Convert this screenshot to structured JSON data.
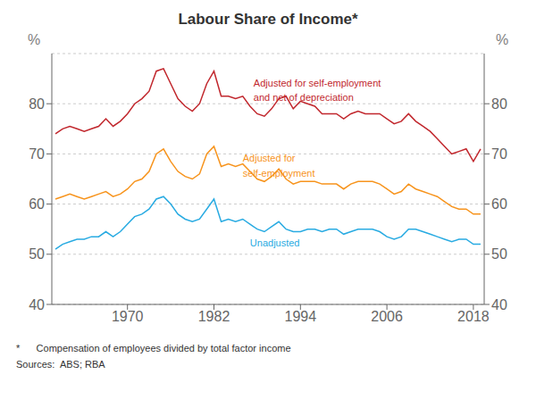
{
  "chart_data": {
    "type": "line",
    "title": "Labour Share of Income*",
    "ylabel": "%",
    "y2label": "%",
    "footnotes": [
      "*      Compensation of employees divided by total factor income",
      "Sources:  ABS; RBA"
    ],
    "x": [
      1960,
      1961,
      1962,
      1963,
      1964,
      1965,
      1966,
      1967,
      1968,
      1969,
      1970,
      1971,
      1972,
      1973,
      1974,
      1975,
      1976,
      1977,
      1978,
      1979,
      1980,
      1981,
      1982,
      1983,
      1984,
      1985,
      1986,
      1987,
      1988,
      1989,
      1990,
      1991,
      1992,
      1993,
      1994,
      1995,
      1996,
      1997,
      1998,
      1999,
      2000,
      2001,
      2002,
      2003,
      2004,
      2005,
      2006,
      2007,
      2008,
      2009,
      2010,
      2011,
      2012,
      2013,
      2014,
      2015,
      2016,
      2017,
      2018,
      2019
    ],
    "series": [
      {
        "color": "#29ABE2",
        "values": [
          51.0,
          52.0,
          52.5,
          53.0,
          53.0,
          53.5,
          53.5,
          54.5,
          53.5,
          54.5,
          56.0,
          57.5,
          58.0,
          59.0,
          61.0,
          61.5,
          60.0,
          58.0,
          57.0,
          56.5,
          57.0,
          59.0,
          61.0,
          56.5,
          57.0,
          56.5,
          57.0,
          56.0,
          55.0,
          54.5,
          55.5,
          56.5,
          55.0,
          54.5,
          54.5,
          55.0,
          55.0,
          54.5,
          55.0,
          55.0,
          54.0,
          54.5,
          55.0,
          55.0,
          55.0,
          54.5,
          53.5,
          53.0,
          53.5,
          55.0,
          55.0,
          54.5,
          54.0,
          53.5,
          53.0,
          52.5,
          53.0,
          53.0,
          52.0,
          52.0
        ]
      },
      {
        "color": "#F7941D",
        "values": [
          61.0,
          61.5,
          62.0,
          61.5,
          61.0,
          61.5,
          62.0,
          62.5,
          61.5,
          62.0,
          63.0,
          64.5,
          65.0,
          66.5,
          70.0,
          71.0,
          68.5,
          66.5,
          65.5,
          65.0,
          66.0,
          70.0,
          71.5,
          67.5,
          68.0,
          67.5,
          68.0,
          66.5,
          65.0,
          64.5,
          65.5,
          67.0,
          65.0,
          64.0,
          64.5,
          64.5,
          64.5,
          64.0,
          64.0,
          64.0,
          63.0,
          64.0,
          64.5,
          64.5,
          64.5,
          64.0,
          63.0,
          62.0,
          62.5,
          64.0,
          63.0,
          62.5,
          62.0,
          61.5,
          60.5,
          59.5,
          59.0,
          59.0,
          58.0,
          58.0
        ]
      },
      {
        "color": "#C1272D",
        "values": [
          74.0,
          75.0,
          75.5,
          75.0,
          74.5,
          75.0,
          75.5,
          77.0,
          75.5,
          76.5,
          78.0,
          80.0,
          81.0,
          82.5,
          86.5,
          87.0,
          84.0,
          81.0,
          79.5,
          78.5,
          80.0,
          84.0,
          86.5,
          81.5,
          81.5,
          81.0,
          81.5,
          79.5,
          78.0,
          77.5,
          79.0,
          81.0,
          81.5,
          79.0,
          80.5,
          80.0,
          79.5,
          78.0,
          78.0,
          78.0,
          77.0,
          78.0,
          78.5,
          78.0,
          78.0,
          78.0,
          77.0,
          76.0,
          76.5,
          78.0,
          76.5,
          75.5,
          74.5,
          73.0,
          71.5,
          70.0,
          70.5,
          71.0,
          68.5,
          71.0
        ]
      }
    ],
    "annotations": [
      {
        "text": "Adjusted for self-employment",
        "x": 1987.5,
        "y": 83.5,
        "color": "#C1272D"
      },
      {
        "text": "and net of depreciation",
        "x": 1987.5,
        "y": 80.5,
        "color": "#C1272D"
      },
      {
        "text": "Adjusted for",
        "x": 1986,
        "y": 68.5,
        "color": "#F7941D"
      },
      {
        "text": "self-employment",
        "x": 1986,
        "y": 65.5,
        "color": "#F7941D"
      },
      {
        "text": "Unadjusted",
        "x": 1987,
        "y": 51.5,
        "color": "#29ABE2"
      }
    ],
    "xlim": [
      1959.5,
      2019.5
    ],
    "xticks": [
      1970,
      1982,
      1994,
      2006,
      2018
    ],
    "ylim": [
      40,
      90
    ],
    "yticks": [
      40,
      50,
      60,
      70,
      80
    ],
    "y2lim": [
      40,
      90
    ],
    "y2ticks": [
      40,
      50,
      60,
      70,
      80
    ],
    "grid": "y"
  }
}
